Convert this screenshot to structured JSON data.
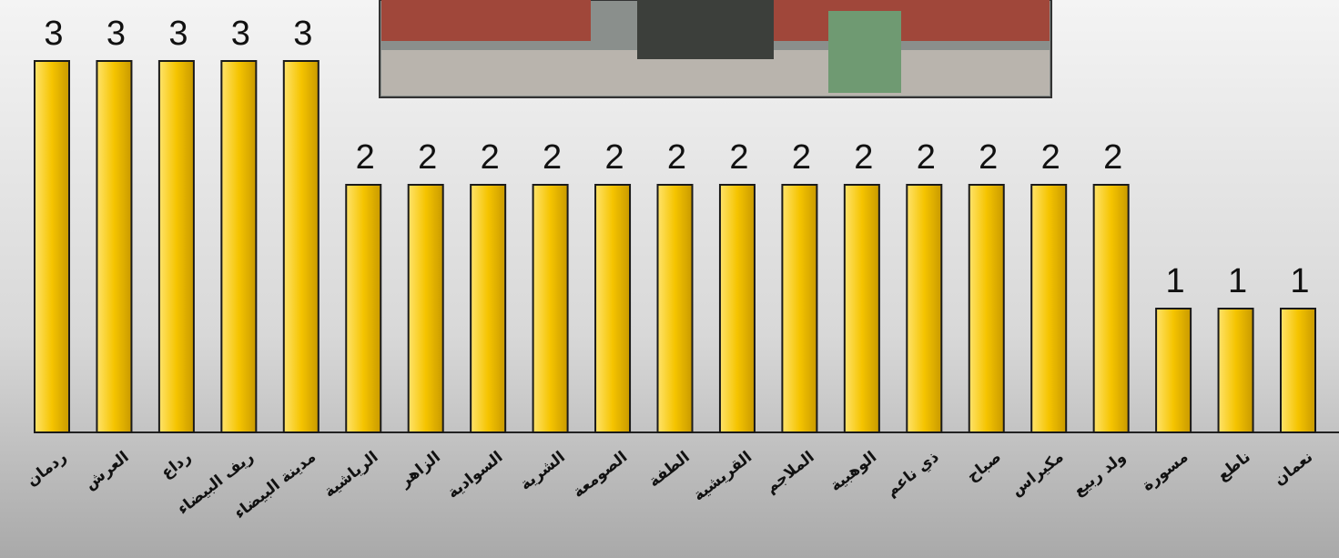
{
  "chart_data": {
    "type": "bar",
    "categories": [
      "ردمان",
      "العرش",
      "رداع",
      "ريف البيضاء",
      "مدينة البيضاء",
      "الرياشية",
      "الزاهر",
      "السوادية",
      "الشرية",
      "الصومعة",
      "الطفة",
      "القريشية",
      "الملاجم",
      "الوهبية",
      "ذي ناعم",
      "صباح",
      "مكيراس",
      "ولد ربيع",
      "مسورة",
      "ناطع",
      "نعمان"
    ],
    "values": [
      3,
      3,
      3,
      3,
      3,
      2,
      2,
      2,
      2,
      2,
      2,
      2,
      2,
      2,
      2,
      2,
      2,
      2,
      1,
      1,
      1
    ],
    "color": "#f5c400",
    "ylim": [
      0,
      3
    ]
  }
}
